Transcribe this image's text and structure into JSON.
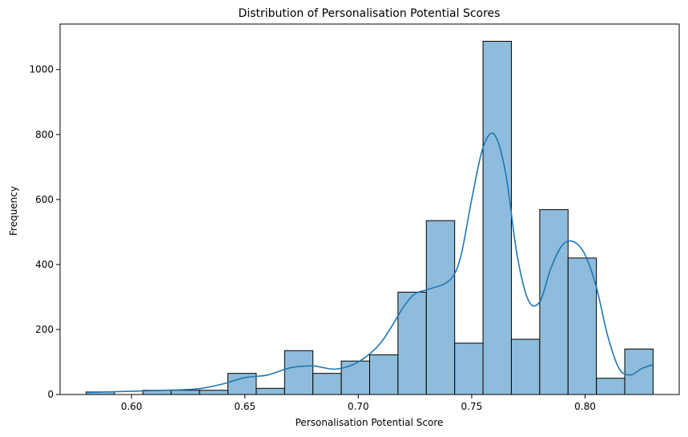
{
  "chart_data": {
    "type": "histogram",
    "title": "Distribution of Personalisation Potential Scores",
    "xlabel": "Personalisation Potential Score",
    "ylabel": "Frequency",
    "xlim": [
      0.5685,
      0.8415
    ],
    "ylim": [
      0,
      1140
    ],
    "xticks": [
      0.6,
      0.65,
      0.7,
      0.75,
      0.8
    ],
    "xtick_labels": [
      "0.60",
      "0.65",
      "0.70",
      "0.75",
      "0.80"
    ],
    "yticks": [
      0,
      200,
      400,
      600,
      800,
      1000
    ],
    "ytick_labels": [
      "0",
      "200",
      "400",
      "600",
      "800",
      "1000"
    ],
    "bin_edges": [
      0.58,
      0.5925,
      0.605,
      0.6175,
      0.63,
      0.6425,
      0.655,
      0.6675,
      0.68,
      0.6925,
      0.705,
      0.7175,
      0.73,
      0.7425,
      0.755,
      0.7675,
      0.78,
      0.7925,
      0.805,
      0.8175,
      0.83
    ],
    "values": [
      8,
      0,
      13,
      13,
      13,
      65,
      19,
      135,
      65,
      103,
      122,
      315,
      535,
      158,
      1087,
      170,
      569,
      420,
      50,
      140
    ],
    "kde": {
      "x": [
        0.58,
        0.59,
        0.6,
        0.61,
        0.62,
        0.63,
        0.64,
        0.65,
        0.66,
        0.67,
        0.68,
        0.69,
        0.7,
        0.71,
        0.72,
        0.725,
        0.73,
        0.74,
        0.745,
        0.75,
        0.755,
        0.76,
        0.765,
        0.77,
        0.775,
        0.78,
        0.785,
        0.79,
        0.795,
        0.8,
        0.805,
        0.81,
        0.815,
        0.82,
        0.825,
        0.83
      ],
      "y": [
        6,
        8,
        10,
        12,
        14,
        18,
        32,
        52,
        60,
        82,
        88,
        78,
        100,
        160,
        270,
        310,
        322,
        350,
        420,
        600,
        760,
        800,
        680,
        430,
        290,
        285,
        390,
        460,
        470,
        430,
        330,
        180,
        80,
        60,
        80,
        92
      ]
    },
    "colors": {
      "bar_fill": "#8fbcdc",
      "bar_edge": "#000000",
      "kde_line": "#1f77b4"
    },
    "grid": false,
    "legend": "none"
  }
}
